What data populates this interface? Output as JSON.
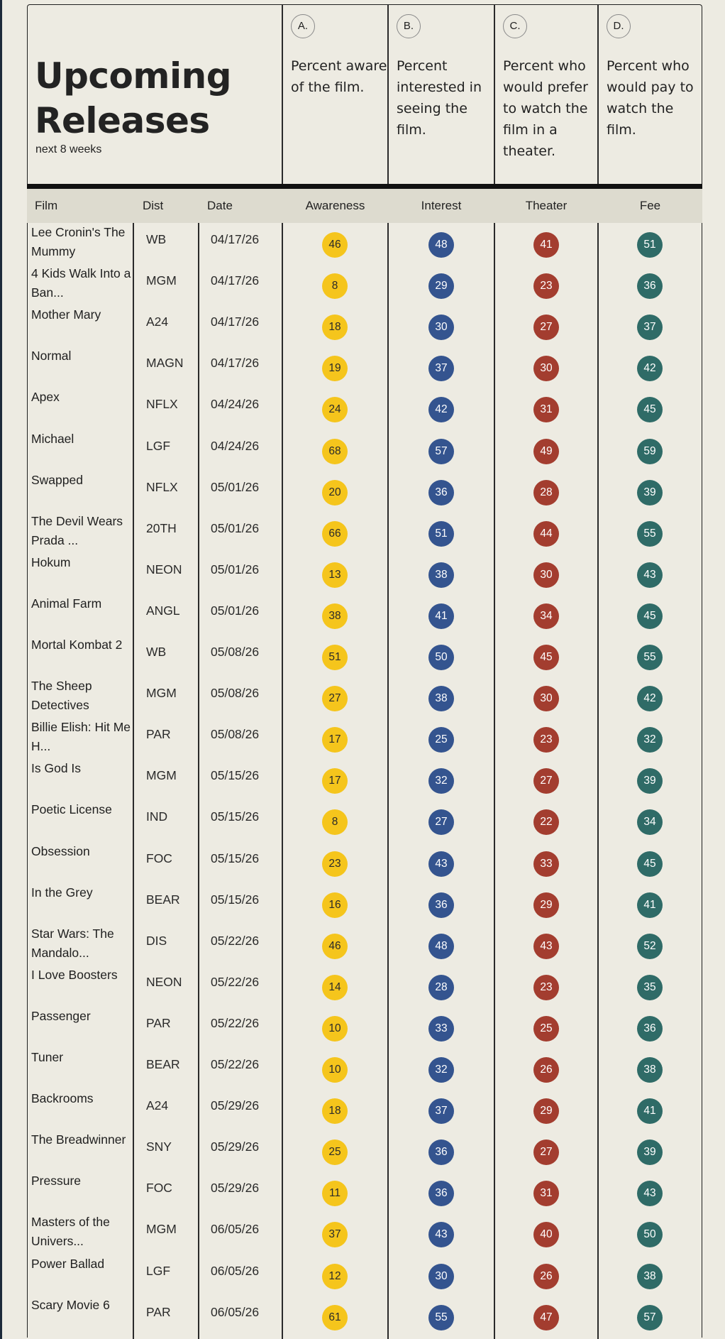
{
  "header": {
    "title": "Upcoming Releases",
    "subtitle": "next 8 weeks"
  },
  "metrics": [
    {
      "letter": "A.",
      "description": "Percent aware of the film.",
      "column": "Awareness",
      "color": "#f5c51c"
    },
    {
      "letter": "B.",
      "description": "Percent interested in seeing the film.",
      "column": "Interest",
      "color": "#34548f"
    },
    {
      "letter": "C.",
      "description": "Percent who would prefer to watch the film in a theater.",
      "column": "Theater",
      "color": "#a33d2f"
    },
    {
      "letter": "D.",
      "description": "Percent who would pay to watch the film.",
      "column": "Fee",
      "color": "#2f6b67"
    }
  ],
  "columns": {
    "film": "Film",
    "dist": "Dist",
    "date": "Date"
  },
  "chart_data": {
    "type": "table",
    "columns": [
      "Film",
      "Dist",
      "Date",
      "Awareness",
      "Interest",
      "Theater",
      "Fee"
    ],
    "rows": [
      [
        "Lee Cronin's The Mummy",
        "WB",
        "04/17/26",
        46,
        48,
        41,
        51
      ],
      [
        "4 Kids Walk Into a Ban...",
        "MGM",
        "04/17/26",
        8,
        29,
        23,
        36
      ],
      [
        "Mother Mary",
        "A24",
        "04/17/26",
        18,
        30,
        27,
        37
      ],
      [
        "Normal",
        "MAGN",
        "04/17/26",
        19,
        37,
        30,
        42
      ],
      [
        "Apex",
        "NFLX",
        "04/24/26",
        24,
        42,
        31,
        45
      ],
      [
        "Michael",
        "LGF",
        "04/24/26",
        68,
        57,
        49,
        59
      ],
      [
        "Swapped",
        "NFLX",
        "05/01/26",
        20,
        36,
        28,
        39
      ],
      [
        "The Devil Wears Prada ...",
        "20TH",
        "05/01/26",
        66,
        51,
        44,
        55
      ],
      [
        "Hokum",
        "NEON",
        "05/01/26",
        13,
        38,
        30,
        43
      ],
      [
        "Animal Farm",
        "ANGL",
        "05/01/26",
        38,
        41,
        34,
        45
      ],
      [
        "Mortal Kombat 2",
        "WB",
        "05/08/26",
        51,
        50,
        45,
        55
      ],
      [
        "The Sheep Detectives",
        "MGM",
        "05/08/26",
        27,
        38,
        30,
        42
      ],
      [
        "Billie Elish: Hit Me H...",
        "PAR",
        "05/08/26",
        17,
        25,
        23,
        32
      ],
      [
        "Is God Is",
        "MGM",
        "05/15/26",
        17,
        32,
        27,
        39
      ],
      [
        "Poetic License",
        "IND",
        "05/15/26",
        8,
        27,
        22,
        34
      ],
      [
        "Obsession",
        "FOC",
        "05/15/26",
        23,
        43,
        33,
        45
      ],
      [
        "In the Grey",
        "BEAR",
        "05/15/26",
        16,
        36,
        29,
        41
      ],
      [
        "Star Wars: The Mandalo...",
        "DIS",
        "05/22/26",
        46,
        48,
        43,
        52
      ],
      [
        "I Love Boosters",
        "NEON",
        "05/22/26",
        14,
        28,
        23,
        35
      ],
      [
        "Passenger",
        "PAR",
        "05/22/26",
        10,
        33,
        25,
        36
      ],
      [
        "Tuner",
        "BEAR",
        "05/22/26",
        10,
        32,
        26,
        38
      ],
      [
        "Backrooms",
        "A24",
        "05/29/26",
        18,
        37,
        29,
        41
      ],
      [
        "The Breadwinner",
        "SNY",
        "05/29/26",
        25,
        36,
        27,
        39
      ],
      [
        "Pressure",
        "FOC",
        "05/29/26",
        11,
        36,
        31,
        43
      ],
      [
        "Masters of the Univers...",
        "MGM",
        "06/05/26",
        37,
        43,
        40,
        50
      ],
      [
        "Power Ballad",
        "LGF",
        "06/05/26",
        12,
        30,
        26,
        38
      ],
      [
        "Scary Movie 6",
        "PAR",
        "06/05/26",
        61,
        55,
        47,
        57
      ]
    ]
  }
}
